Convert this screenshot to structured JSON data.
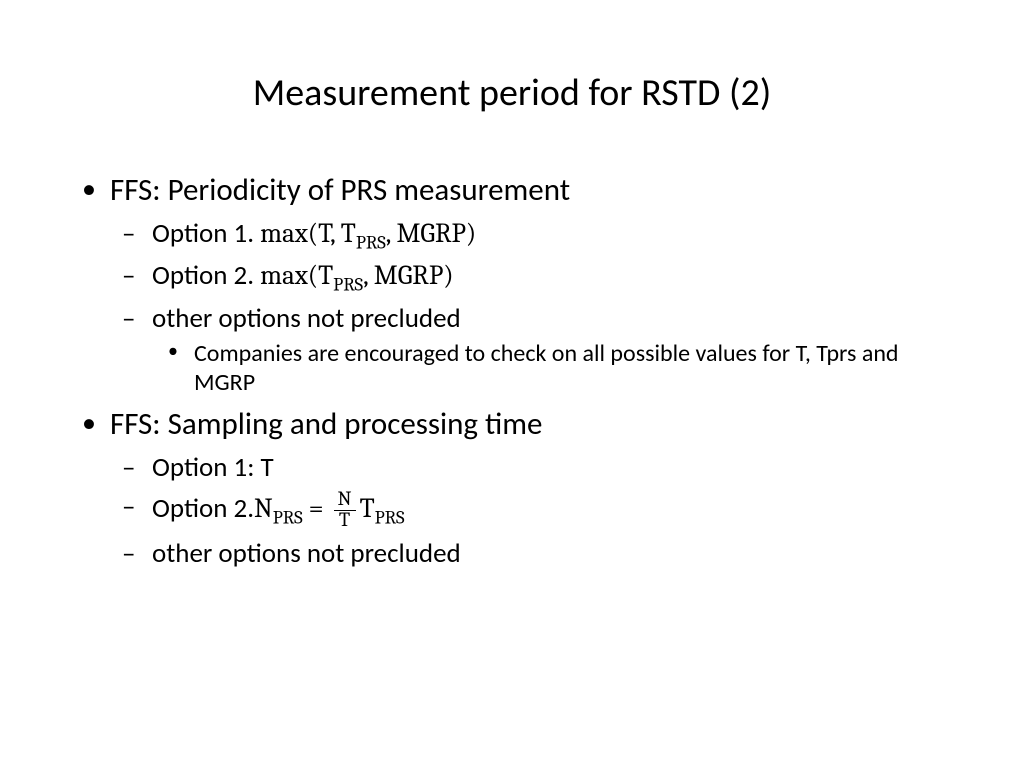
{
  "title": "Measurement period for RSTD (2)",
  "bullets": [
    {
      "text": "FFS: Periodicity of PRS measurement",
      "children": [
        {
          "prefix": "Option 1. ",
          "formula_html": "max(T, T<sub>PRS</sub>, MGRP)"
        },
        {
          "prefix": "Option 2. ",
          "formula_html": "max(T<sub>PRS</sub>, MGRP)"
        },
        {
          "text": "other options not precluded",
          "children": [
            {
              "text": "Companies are encouraged to check on all possible values for T, Tprs and MGRP"
            }
          ]
        }
      ]
    },
    {
      "text": "FFS: Sampling and processing time",
      "children": [
        {
          "text": "Option 1: T"
        },
        {
          "prefix": "Option 2.",
          "formula_html": "N<sub>PRS</sub> = <span class=\"frac\"><span class=\"num\">N</span><span class=\"den\">T</span></span>T<sub>PRS</sub>"
        },
        {
          "text": "other options not precluded"
        }
      ]
    }
  ]
}
